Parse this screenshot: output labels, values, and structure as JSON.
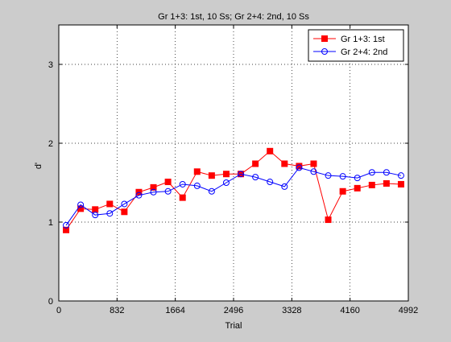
{
  "chart_data": {
    "type": "line",
    "title": "Gr 1+3: 1st, 10 Ss; Gr 2+4: 2nd, 10 Ss",
    "xlabel": "Trial",
    "ylabel": "d'",
    "xlim": [
      0,
      4992
    ],
    "ylim": [
      0,
      3.5
    ],
    "xticks": [
      0,
      832,
      1664,
      2496,
      3328,
      4160,
      4992
    ],
    "yticks": [
      0,
      1,
      2,
      3
    ],
    "grid": true,
    "legend_position": "top-right",
    "series": [
      {
        "name": "Gr 1+3: 1st",
        "color": "#ff0000",
        "marker": "square",
        "x": [
          104,
          312,
          520,
          728,
          936,
          1144,
          1352,
          1560,
          1768,
          1976,
          2184,
          2392,
          2600,
          2808,
          3016,
          3224,
          3432,
          3640,
          3848,
          4056,
          4264,
          4472,
          4680,
          4888
        ],
        "y": [
          0.9,
          1.17,
          1.16,
          1.23,
          1.13,
          1.38,
          1.44,
          1.51,
          1.31,
          1.64,
          1.59,
          1.61,
          1.61,
          1.74,
          1.9,
          1.74,
          1.71,
          1.74,
          1.03,
          1.39,
          1.43,
          1.47,
          1.49,
          1.48
        ]
      },
      {
        "name": "Gr 2+4: 2nd",
        "color": "#0000ff",
        "marker": "circle",
        "x": [
          104,
          312,
          520,
          728,
          936,
          1144,
          1352,
          1560,
          1768,
          1976,
          2184,
          2392,
          2600,
          2808,
          3016,
          3224,
          3432,
          3640,
          3848,
          4056,
          4264,
          4472,
          4680,
          4888
        ],
        "y": [
          0.96,
          1.22,
          1.09,
          1.11,
          1.23,
          1.34,
          1.38,
          1.39,
          1.48,
          1.46,
          1.39,
          1.5,
          1.61,
          1.57,
          1.51,
          1.45,
          1.69,
          1.64,
          1.59,
          1.58,
          1.56,
          1.63,
          1.63,
          1.59
        ]
      }
    ]
  }
}
